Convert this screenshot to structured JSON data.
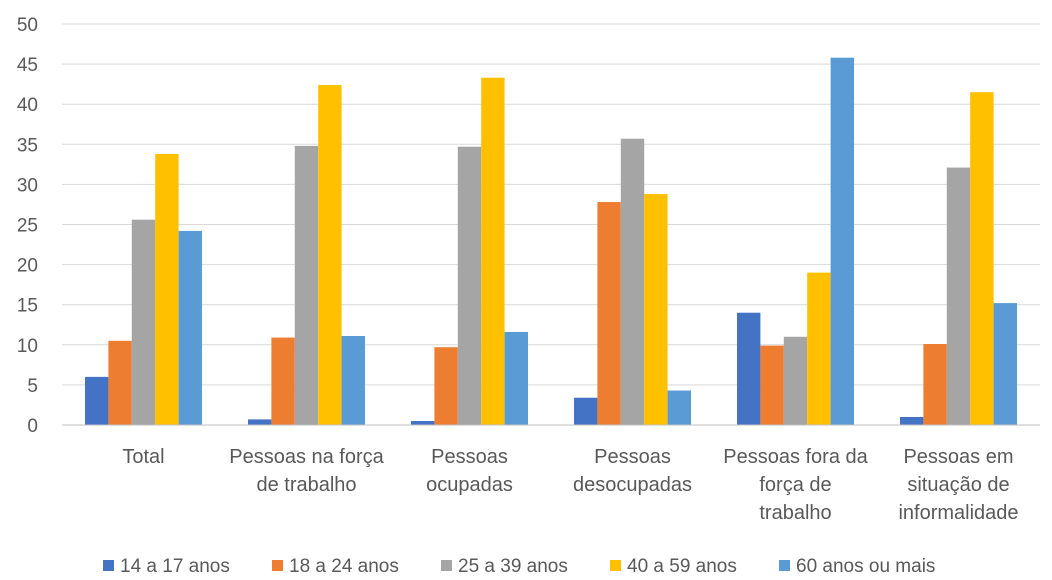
{
  "chart_data": {
    "type": "bar",
    "categories": [
      [
        "Total"
      ],
      [
        "Pessoas na força",
        "de trabalho"
      ],
      [
        "Pessoas",
        "ocupadas"
      ],
      [
        "Pessoas",
        "desocupadas"
      ],
      [
        "Pessoas fora da",
        "força de",
        "trabalho"
      ],
      [
        "Pessoas em",
        "situação de",
        "informalidade"
      ]
    ],
    "series": [
      {
        "name": "14 a 17 anos",
        "color": "#4472C4",
        "values": [
          6.0,
          0.7,
          0.5,
          3.4,
          14.0,
          1.0
        ]
      },
      {
        "name": "18 a 24 anos",
        "color": "#ED7D31",
        "values": [
          10.5,
          10.9,
          9.7,
          27.8,
          9.9,
          10.1
        ]
      },
      {
        "name": "25 a 39 anos",
        "color": "#A5A5A5",
        "values": [
          25.6,
          34.8,
          34.7,
          35.7,
          11.0,
          32.1
        ]
      },
      {
        "name": "40 a 59 anos",
        "color": "#FFC000",
        "values": [
          33.8,
          42.4,
          43.3,
          28.8,
          19.0,
          41.5
        ]
      },
      {
        "name": "60 anos ou mais",
        "color": "#5B9BD5",
        "values": [
          24.2,
          11.1,
          11.6,
          4.3,
          45.8,
          15.2
        ]
      }
    ],
    "yticks": [
      "0",
      "5",
      "10",
      "15",
      "20",
      "25",
      "30",
      "35",
      "40",
      "45",
      "50"
    ],
    "ylim": [
      0,
      50
    ],
    "grid": true,
    "legend": "bottom",
    "title": "",
    "xlabel": "",
    "ylabel": ""
  }
}
